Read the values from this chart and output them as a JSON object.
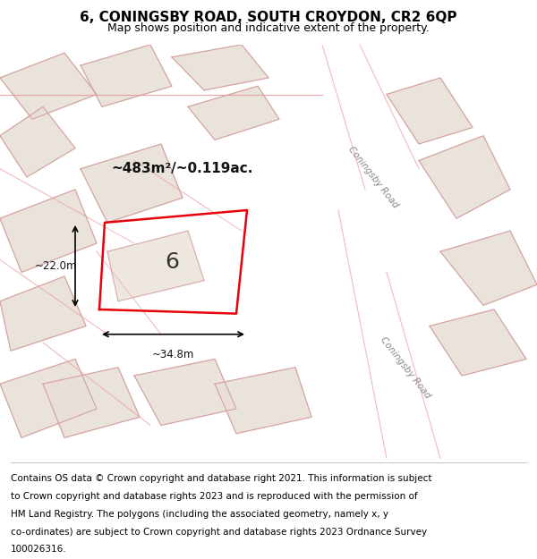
{
  "title": "6, CONINGSBY ROAD, SOUTH CROYDON, CR2 6QP",
  "subtitle": "Map shows position and indicative extent of the property.",
  "footer": "Contains OS data © Crown copyright and database right 2021. This information is subject to Crown copyright and database rights 2023 and is reproduced with the permission of HM Land Registry. The polygons (including the associated geometry, namely x, y co-ordinates) are subject to Crown copyright and database rights 2023 Ordnance Survey 100026316.",
  "bg_color": "#f0eeeb",
  "map_bg": "#f5f3f0",
  "road_color": "#ffffff",
  "building_fill": "#e8e0d8",
  "building_edge": "#c0b8b0",
  "highlight_fill": "none",
  "highlight_edge": "#e8000a",
  "road_label": "Coningsby Road",
  "area_label": "~483m²/~0.119ac.",
  "number_label": "6",
  "dim_width": "~34.8m",
  "dim_height": "~22.0m",
  "title_fontsize": 11,
  "subtitle_fontsize": 9,
  "footer_fontsize": 7.5
}
